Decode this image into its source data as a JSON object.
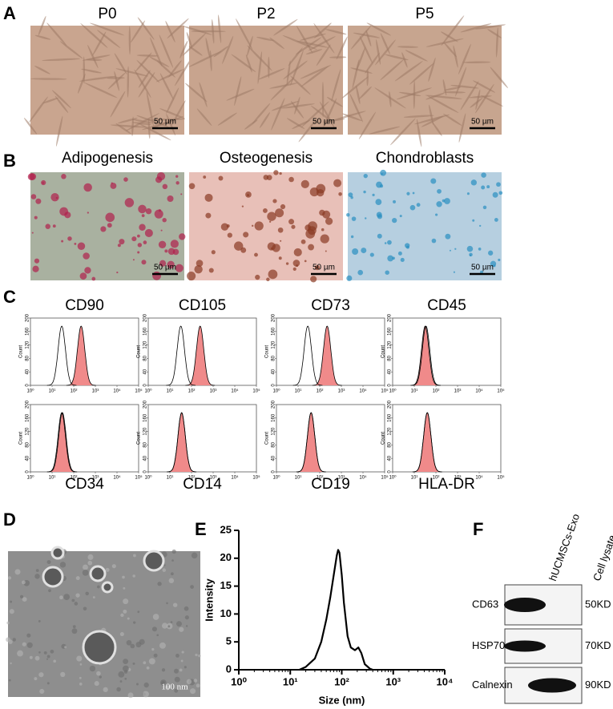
{
  "panels": {
    "A": {
      "label": "A",
      "images": [
        {
          "title": "P0",
          "scale": "50 µm"
        },
        {
          "title": "P2",
          "scale": "50 µm"
        },
        {
          "title": "P5",
          "scale": "50 µm"
        }
      ]
    },
    "B": {
      "label": "B",
      "images": [
        {
          "title": "Adipogenesis",
          "scale": "50 µm"
        },
        {
          "title": "Osteogenesis",
          "scale": "50 µm"
        },
        {
          "title": "Chondroblasts",
          "scale": "50 µm"
        }
      ]
    },
    "C": {
      "label": "C",
      "ylabel": "Count",
      "xlim": [
        1,
        100000
      ],
      "xticks": [
        {
          "value": 1,
          "label": "10⁰"
        },
        {
          "value": 10,
          "label": "10¹"
        },
        {
          "value": 100,
          "label": "10²"
        },
        {
          "value": 1000,
          "label": "10³"
        },
        {
          "value": 10000,
          "label": "10⁴"
        },
        {
          "value": 100000,
          "label": "10⁵"
        }
      ],
      "ylim": [
        0,
        200
      ],
      "yticks": [
        0,
        40,
        80,
        120,
        160,
        200
      ],
      "histograms": [
        {
          "name": "CD90",
          "isotype_peak": 28,
          "sample_peak": 220
        },
        {
          "name": "CD105",
          "isotype_peak": 32,
          "sample_peak": 250
        },
        {
          "name": "CD73",
          "isotype_peak": 28,
          "sample_peak": 220
        },
        {
          "name": "CD45",
          "isotype_peak": 35,
          "sample_peak": 32
        },
        {
          "name": "CD34",
          "isotype_peak": 28,
          "sample_peak": 30
        },
        {
          "name": "CD14",
          "isotype_peak": 35,
          "sample_peak": 35
        },
        {
          "name": "CD19",
          "isotype_peak": 40,
          "sample_peak": 40
        },
        {
          "name": "HLA-DR",
          "isotype_peak": 40,
          "sample_peak": 40
        }
      ]
    },
    "D": {
      "label": "D",
      "scale": "100 nm"
    },
    "E": {
      "label": "E"
    },
    "F": {
      "label": "F",
      "columns": [
        "hUCMSCs-Exo",
        "Cell lysate"
      ],
      "rows": [
        {
          "name": "CD63",
          "size": "50KD"
        },
        {
          "name": "HSP70",
          "size": "70KD"
        },
        {
          "name": "Calnexin",
          "size": "90KD"
        }
      ]
    }
  },
  "chart_data": {
    "type": "line",
    "xlabel": "Size (nm)",
    "ylabel": "Intensity",
    "log_x": true,
    "color": "#000000",
    "x": [
      15,
      20,
      30,
      40,
      50,
      60,
      70,
      80,
      85,
      90,
      100,
      110,
      130,
      150,
      180,
      210,
      240,
      280,
      350,
      400
    ],
    "values": [
      0,
      0.5,
      2,
      5,
      9,
      13,
      17,
      20.5,
      21.5,
      21,
      17,
      12,
      6,
      4,
      3.5,
      4,
      3,
      1,
      0.2,
      0
    ],
    "xlim": [
      1,
      10000
    ],
    "xticks": [
      {
        "value": 1,
        "label": "10⁰"
      },
      {
        "value": 10,
        "label": "10¹"
      },
      {
        "value": 100,
        "label": "10²"
      },
      {
        "value": 1000,
        "label": "10³"
      },
      {
        "value": 10000,
        "label": "10⁴"
      }
    ],
    "ylim": [
      0,
      25
    ],
    "yticks": [
      0,
      5,
      10,
      15,
      20,
      25
    ]
  }
}
